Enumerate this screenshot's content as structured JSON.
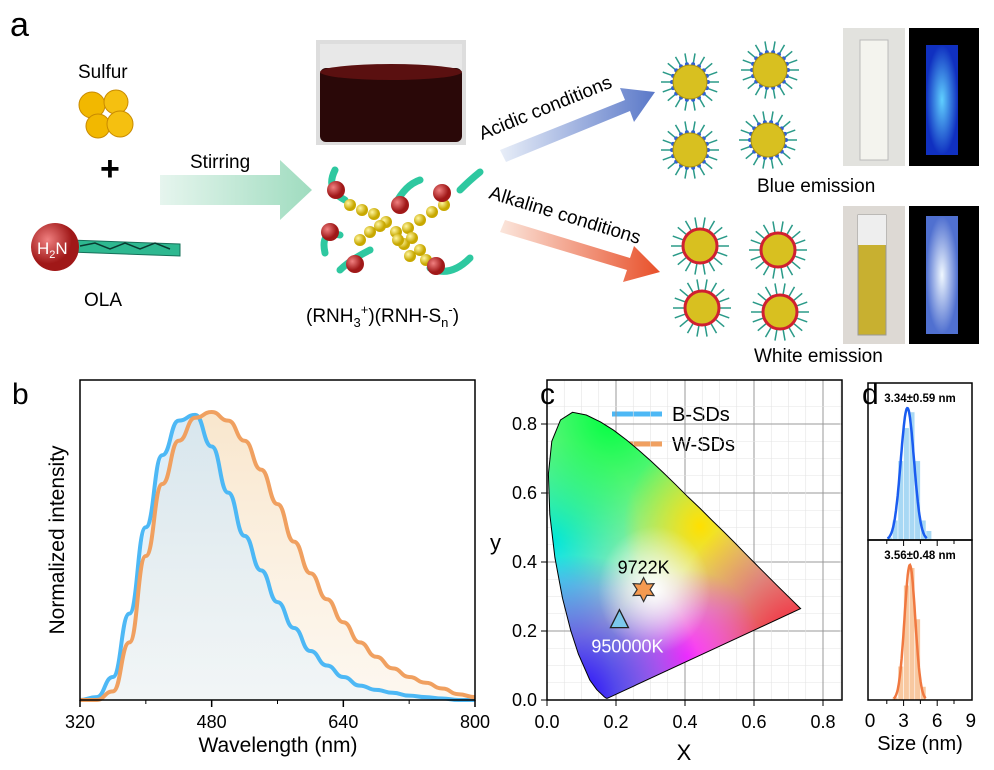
{
  "panel_labels": {
    "a": "a",
    "b": "b",
    "c": "c",
    "d": "d"
  },
  "scheme": {
    "sulfur": "Sulfur",
    "plus": "+",
    "ola": "OLA",
    "amine_parts": [
      "H",
      "2",
      "N"
    ],
    "stirring": "Stirring",
    "complex_parts": [
      "(RNH",
      "3",
      "+",
      ")(RNH-S",
      "n",
      "-",
      ")"
    ],
    "acidic": "Acidic conditions",
    "alkaline": "Alkaline conditions",
    "blue_emission": "Blue emission",
    "white_emission": "White emission"
  },
  "colors": {
    "blue": "#4db8f5",
    "orange": "#f0a060",
    "blue_dark": "#1a5cf0",
    "orange_dark": "#f07840"
  },
  "chart_data": [
    {
      "panel": "b",
      "type": "line",
      "xlabel": "Wavelength (nm)",
      "ylabel": "Normalized intensity",
      "xlim": [
        320,
        800
      ],
      "xticks": [
        "320",
        "480",
        "640",
        "800"
      ],
      "legend": "top-right",
      "x": [
        320,
        340,
        360,
        380,
        400,
        420,
        440,
        460,
        480,
        500,
        520,
        540,
        560,
        580,
        600,
        620,
        640,
        660,
        680,
        700,
        720,
        740,
        760,
        780,
        800
      ],
      "series": [
        {
          "name": "B-SDs",
          "values": [
            0,
            0.01,
            0.08,
            0.3,
            0.6,
            0.85,
            0.97,
            0.99,
            0.88,
            0.72,
            0.57,
            0.45,
            0.34,
            0.25,
            0.17,
            0.12,
            0.08,
            0.05,
            0.035,
            0.025,
            0.015,
            0.01,
            0.005,
            0,
            0
          ]
        },
        {
          "name": "W-SDs",
          "values": [
            0,
            0,
            0.03,
            0.2,
            0.5,
            0.75,
            0.9,
            0.98,
            1.0,
            0.97,
            0.9,
            0.8,
            0.68,
            0.55,
            0.44,
            0.35,
            0.27,
            0.2,
            0.15,
            0.11,
            0.08,
            0.06,
            0.04,
            0.02,
            0.01
          ]
        }
      ]
    },
    {
      "panel": "c",
      "type": "scatter",
      "xlabel": "X",
      "ylabel": "y",
      "xlim": [
        0,
        0.8
      ],
      "ylim": [
        0,
        0.85
      ],
      "xticks": [
        "0.0",
        "0.2",
        "0.4",
        "0.6",
        "0.8"
      ],
      "yticks": [
        "0.0",
        "0.2",
        "0.4",
        "0.6",
        "0.8"
      ],
      "grid": true,
      "points": [
        {
          "name": "W-SDs",
          "x": 0.28,
          "y": 0.32,
          "label": "9722K",
          "marker": "star"
        },
        {
          "name": "B-SDs",
          "x": 0.21,
          "y": 0.23,
          "label": "950000K",
          "marker": "triangle"
        }
      ]
    },
    {
      "panel": "d",
      "type": "bar",
      "xlabel": "Size (nm)",
      "xlim": [
        0,
        9
      ],
      "xticks": [
        "0",
        "3",
        "6",
        "9"
      ],
      "series": [
        {
          "name": "B-SDs",
          "label": "3.34±0.59 nm",
          "mean": 3.34,
          "sd": 0.59,
          "bins": [
            1.5,
            2,
            2.5,
            3,
            3.5,
            4,
            4.5,
            5
          ],
          "counts": [
            0.02,
            0.15,
            0.6,
            0.85,
            0.97,
            0.6,
            0.15,
            0.07
          ]
        },
        {
          "name": "W-SDs",
          "label": "3.56±0.48 nm",
          "mean": 3.56,
          "sd": 0.48,
          "bins": [
            2,
            2.5,
            3,
            3.5,
            4,
            4.5
          ],
          "counts": [
            0.02,
            0.25,
            0.85,
            0.98,
            0.6,
            0.1
          ]
        }
      ]
    }
  ]
}
